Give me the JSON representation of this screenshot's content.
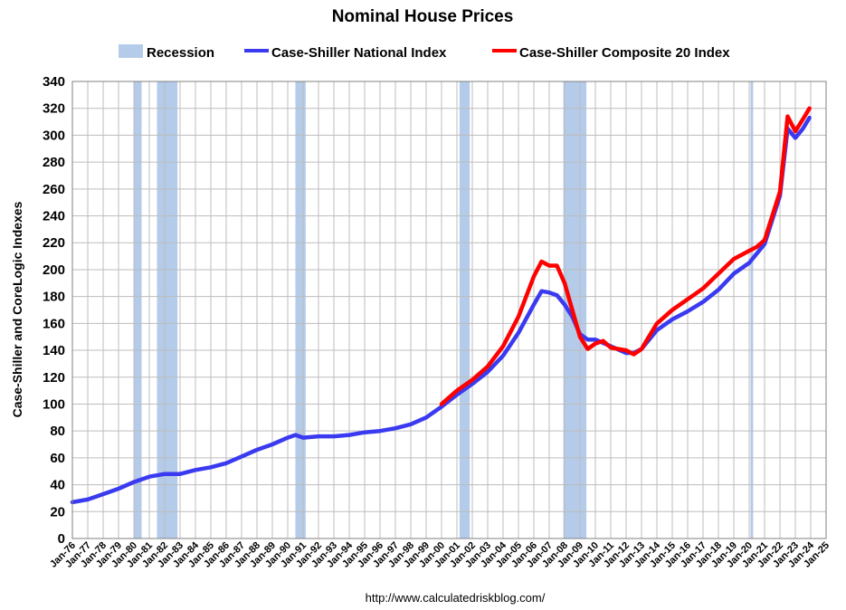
{
  "chart_data": {
    "type": "line",
    "title": "Nominal House Prices",
    "ylabel": "Case-Shiller and CoreLogic Indexes",
    "xlabel": "",
    "source_url": "http://www.calculatedriskblog.com/",
    "ylim": [
      0,
      340
    ],
    "yticks": [
      0,
      20,
      40,
      60,
      80,
      100,
      120,
      140,
      160,
      180,
      200,
      220,
      240,
      260,
      280,
      300,
      320,
      340
    ],
    "xlim": [
      1976,
      2025
    ],
    "xtick_labels": [
      "Jan-76",
      "Jan-77",
      "Jan-78",
      "Jan-79",
      "Jan-80",
      "Jan-81",
      "Jan-82",
      "Jan-83",
      "Jan-84",
      "Jan-85",
      "Jan-86",
      "Jan-87",
      "Jan-88",
      "Jan-89",
      "Jan-90",
      "Jan-91",
      "Jan-92",
      "Jan-93",
      "Jan-94",
      "Jan-95",
      "Jan-96",
      "Jan-97",
      "Jan-98",
      "Jan-99",
      "Jan-00",
      "Jan-01",
      "Jan-02",
      "Jan-03",
      "Jan-04",
      "Jan-05",
      "Jan-06",
      "Jan-07",
      "Jan-08",
      "Jan-09",
      "Jan-10",
      "Jan-11",
      "Jan-12",
      "Jan-13",
      "Jan-14",
      "Jan-15",
      "Jan-16",
      "Jan-17",
      "Jan-18",
      "Jan-19",
      "Jan-20",
      "Jan-21",
      "Jan-22",
      "Jan-23",
      "Jan-24",
      "Jan-25"
    ],
    "grid": true,
    "legend_position": "top",
    "legend": [
      {
        "label": "Recession",
        "color": "#b4cbe9",
        "kind": "area"
      },
      {
        "label": "Case-Shiller National Index",
        "color": "#3a3af0",
        "kind": "line"
      },
      {
        "label": "Case-Shiller Composite 20 Index",
        "color": "#ff0000",
        "kind": "line"
      }
    ],
    "recessions": [
      {
        "start": "Jan-80",
        "end": "Jul-80"
      },
      {
        "start": "Jul-81",
        "end": "Nov-82"
      },
      {
        "start": "Jul-90",
        "end": "Mar-91"
      },
      {
        "start": "Mar-01",
        "end": "Nov-01"
      },
      {
        "start": "Dec-07",
        "end": "Jun-09"
      },
      {
        "start": "Feb-20",
        "end": "Apr-20"
      }
    ],
    "series": [
      {
        "name": "Case-Shiller National Index",
        "color": "#3a3af0",
        "points": [
          [
            "Jan-76",
            27
          ],
          [
            "Jan-77",
            29
          ],
          [
            "Jan-78",
            33
          ],
          [
            "Jan-79",
            37
          ],
          [
            "Jan-80",
            42
          ],
          [
            "Jan-81",
            46
          ],
          [
            "Jan-82",
            48
          ],
          [
            "Jan-83",
            48
          ],
          [
            "Jan-84",
            51
          ],
          [
            "Jan-85",
            53
          ],
          [
            "Jan-86",
            56
          ],
          [
            "Jan-87",
            61
          ],
          [
            "Jan-88",
            66
          ],
          [
            "Jan-89",
            70
          ],
          [
            "Jan-90",
            75
          ],
          [
            "Jul-90",
            77
          ],
          [
            "Jan-91",
            75
          ],
          [
            "Jan-92",
            76
          ],
          [
            "Jan-93",
            76
          ],
          [
            "Jan-94",
            77
          ],
          [
            "Jan-95",
            79
          ],
          [
            "Jan-96",
            80
          ],
          [
            "Jan-97",
            82
          ],
          [
            "Jan-98",
            85
          ],
          [
            "Jan-99",
            90
          ],
          [
            "Jan-00",
            98
          ],
          [
            "Jan-01",
            107
          ],
          [
            "Jan-02",
            115
          ],
          [
            "Jan-03",
            124
          ],
          [
            "Jan-04",
            136
          ],
          [
            "Jan-05",
            153
          ],
          [
            "Jan-06",
            174
          ],
          [
            "Jul-06",
            184
          ],
          [
            "Jan-07",
            183
          ],
          [
            "Jul-07",
            181
          ],
          [
            "Jan-08",
            174
          ],
          [
            "Jul-08",
            165
          ],
          [
            "Jan-09",
            152
          ],
          [
            "Jul-09",
            148
          ],
          [
            "Jan-10",
            148
          ],
          [
            "Jan-11",
            143
          ],
          [
            "Jan-12",
            138
          ],
          [
            "Jul-12",
            138
          ],
          [
            "Jan-13",
            141
          ],
          [
            "Jan-14",
            155
          ],
          [
            "Jan-15",
            163
          ],
          [
            "Jan-16",
            169
          ],
          [
            "Jan-17",
            176
          ],
          [
            "Jan-18",
            185
          ],
          [
            "Jan-19",
            197
          ],
          [
            "Jan-20",
            205
          ],
          [
            "Jan-21",
            219
          ],
          [
            "Jan-22",
            255
          ],
          [
            "Jul-22",
            305
          ],
          [
            "Jan-23",
            298
          ],
          [
            "Jul-23",
            305
          ],
          [
            "Dec-23",
            313
          ]
        ]
      },
      {
        "name": "Case-Shiller Composite 20 Index",
        "color": "#ff0000",
        "points": [
          [
            "Jan-00",
            100
          ],
          [
            "Jan-01",
            110
          ],
          [
            "Jan-02",
            118
          ],
          [
            "Jan-03",
            128
          ],
          [
            "Jan-04",
            143
          ],
          [
            "Jan-05",
            165
          ],
          [
            "Jan-06",
            195
          ],
          [
            "Jul-06",
            206
          ],
          [
            "Jan-07",
            203
          ],
          [
            "Jul-07",
            203
          ],
          [
            "Jan-08",
            190
          ],
          [
            "Jul-08",
            170
          ],
          [
            "Jan-09",
            150
          ],
          [
            "Jul-09",
            141
          ],
          [
            "Jan-10",
            145
          ],
          [
            "Jul-10",
            147
          ],
          [
            "Jan-11",
            142
          ],
          [
            "Jan-12",
            140
          ],
          [
            "Jul-12",
            137
          ],
          [
            "Jan-13",
            141
          ],
          [
            "Jan-14",
            160
          ],
          [
            "Jan-15",
            170
          ],
          [
            "Jan-16",
            178
          ],
          [
            "Jan-17",
            186
          ],
          [
            "Jan-18",
            197
          ],
          [
            "Jan-19",
            208
          ],
          [
            "Jan-20",
            214
          ],
          [
            "Jul-20",
            217
          ],
          [
            "Jan-21",
            222
          ],
          [
            "Jan-22",
            258
          ],
          [
            "Jul-22",
            314
          ],
          [
            "Jan-23",
            303
          ],
          [
            "Jul-23",
            312
          ],
          [
            "Dec-23",
            320
          ]
        ]
      }
    ]
  }
}
